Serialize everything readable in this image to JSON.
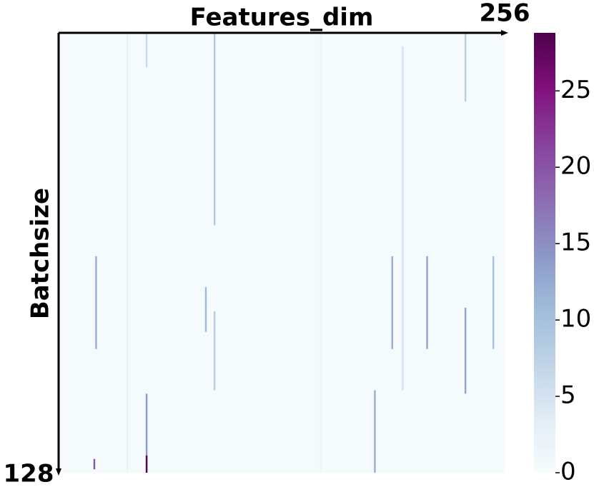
{
  "chart_data": {
    "type": "heatmap",
    "title": "Features_dim",
    "ylabel": "Batchsize",
    "x_end_label": "256",
    "y_end_label": "128",
    "n_cols": 256,
    "n_rows": 128,
    "background": 0.3,
    "colormap": [
      "#f7fcfd",
      "#e0ecf4",
      "#bfd3e6",
      "#9ebcda",
      "#8c96c6",
      "#8c6bb1",
      "#88419d",
      "#810f7c",
      "#4d004b"
    ],
    "zlim": [
      0,
      28.8
    ],
    "zticks": [
      0,
      5,
      10,
      15,
      20,
      25
    ],
    "streaks": [
      {
        "col": 89,
        "row_start": 1,
        "row_end": 56,
        "value": 9
      },
      {
        "col": 89,
        "row_start": 82,
        "row_end": 104,
        "value": 8
      },
      {
        "col": 233,
        "row_start": 1,
        "row_end": 20,
        "value": 8
      },
      {
        "col": 233,
        "row_start": 81,
        "row_end": 105,
        "value": 13
      },
      {
        "col": 50,
        "row_start": 1,
        "row_end": 10,
        "value": 6
      },
      {
        "col": 50,
        "row_start": 106,
        "row_end": 128,
        "value": 14
      },
      {
        "col": 50,
        "row_start": 124,
        "row_end": 128,
        "value": 28
      },
      {
        "col": 181,
        "row_start": 105,
        "row_end": 128,
        "value": 12
      },
      {
        "col": 21,
        "row_start": 66,
        "row_end": 92,
        "value": 12
      },
      {
        "col": 20,
        "row_start": 125,
        "row_end": 127,
        "value": 20
      },
      {
        "col": 191,
        "row_start": 66,
        "row_end": 92,
        "value": 12
      },
      {
        "col": 211,
        "row_start": 66,
        "row_end": 92,
        "value": 13
      },
      {
        "col": 249,
        "row_start": 66,
        "row_end": 92,
        "value": 10
      },
      {
        "col": 197,
        "row_start": 5,
        "row_end": 104,
        "value": 5
      },
      {
        "col": 84,
        "row_start": 75,
        "row_end": 87,
        "value": 11
      },
      {
        "col": 39,
        "row_start": 1,
        "row_end": 128,
        "value": 2
      },
      {
        "col": 150,
        "row_start": 1,
        "row_end": 128,
        "value": 1.5
      }
    ]
  }
}
